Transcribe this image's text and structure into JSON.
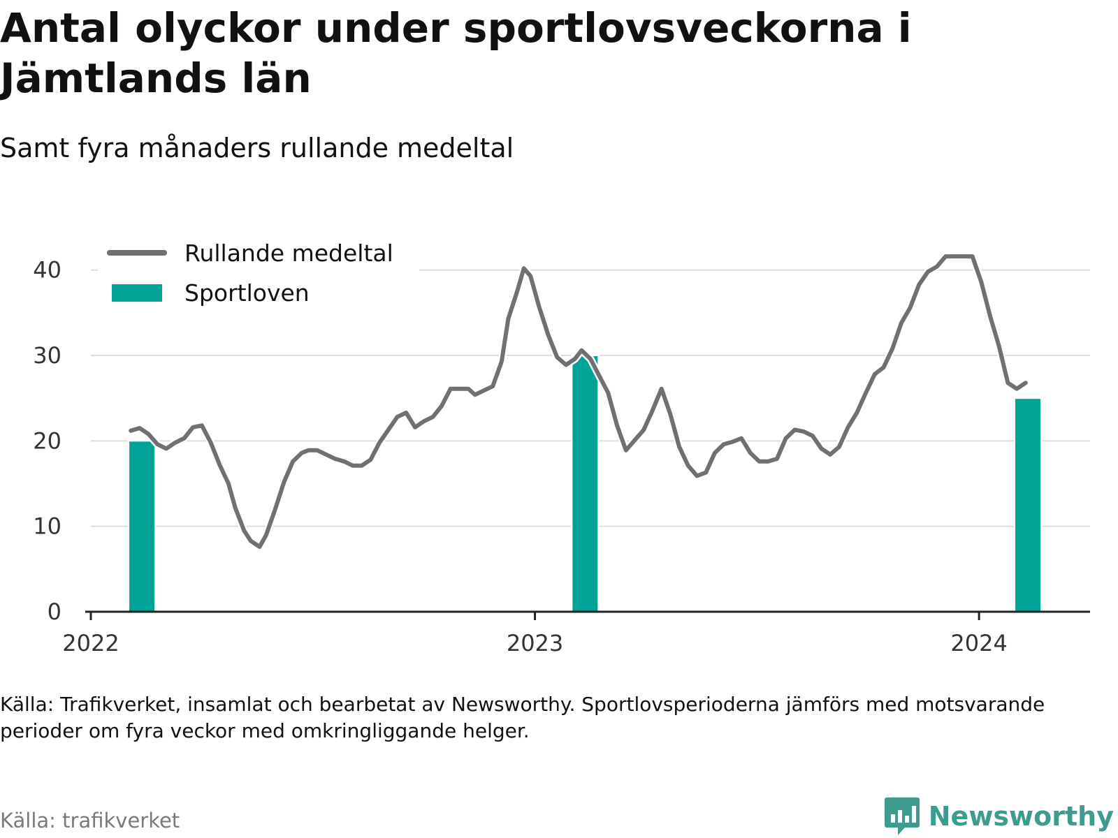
{
  "title": "Antal olyckor under sportlovsveckorna i Jämtlands län",
  "subtitle": "Samt fyra månaders rullande medeltal",
  "note": "Källa: Trafikverket, insamlat och bearbetat av Newsworthy. Sportlovsperioderna jämförs med motsvarande perioder om fyra veckor med omkringliggande helger.",
  "source": "Källa: trafikverket",
  "brand": {
    "name": "Newsworthy",
    "icon": "bar-chart-speech-icon",
    "color": "#3c9c8f"
  },
  "chart_data": {
    "type": "line+bar",
    "xlim": [
      2022.0,
      2024.25
    ],
    "ylim": [
      0,
      43
    ],
    "yticks": [
      0,
      10,
      20,
      30,
      40
    ],
    "xticks": [
      {
        "value": 2022,
        "label": "2022"
      },
      {
        "value": 2023,
        "label": "2023"
      },
      {
        "value": 2024,
        "label": "2024"
      }
    ],
    "grid": true,
    "legend": {
      "placement": "top-left",
      "entries": [
        {
          "label": "Rullande medeltal",
          "type": "line",
          "color": "#6f6f74"
        },
        {
          "label": "Sportloven",
          "type": "bar",
          "color": "#00a398"
        }
      ]
    },
    "series": [
      {
        "type": "line",
        "color": "#6f6f74",
        "points": [
          [
            2022.09,
            21.2
          ],
          [
            2022.11,
            21.5
          ],
          [
            2022.13,
            20.8
          ],
          [
            2022.15,
            19.6
          ],
          [
            2022.17,
            19.1
          ],
          [
            2022.19,
            19.8
          ],
          [
            2022.21,
            20.3
          ],
          [
            2022.23,
            21.6
          ],
          [
            2022.25,
            21.8
          ],
          [
            2022.27,
            19.8
          ],
          [
            2022.29,
            17.2
          ],
          [
            2022.31,
            15.0
          ],
          [
            2022.325,
            12.2
          ],
          [
            2022.345,
            9.5
          ],
          [
            2022.36,
            8.3
          ],
          [
            2022.38,
            7.6
          ],
          [
            2022.395,
            9.0
          ],
          [
            2022.415,
            12.0
          ],
          [
            2022.435,
            15.2
          ],
          [
            2022.455,
            17.6
          ],
          [
            2022.475,
            18.6
          ],
          [
            2022.49,
            18.9
          ],
          [
            2022.51,
            18.9
          ],
          [
            2022.53,
            18.4
          ],
          [
            2022.55,
            17.9
          ],
          [
            2022.57,
            17.6
          ],
          [
            2022.59,
            17.1
          ],
          [
            2022.61,
            17.1
          ],
          [
            2022.63,
            17.8
          ],
          [
            2022.65,
            19.8
          ],
          [
            2022.67,
            21.3
          ],
          [
            2022.69,
            22.8
          ],
          [
            2022.71,
            23.3
          ],
          [
            2022.73,
            21.6
          ],
          [
            2022.75,
            22.3
          ],
          [
            2022.77,
            22.8
          ],
          [
            2022.79,
            24.1
          ],
          [
            2022.81,
            26.1
          ],
          [
            2022.83,
            26.1
          ],
          [
            2022.85,
            26.1
          ],
          [
            2022.865,
            25.4
          ],
          [
            2022.885,
            25.9
          ],
          [
            2022.905,
            26.4
          ],
          [
            2022.925,
            29.3
          ],
          [
            2022.94,
            34.3
          ],
          [
            2022.96,
            37.5
          ],
          [
            2022.975,
            40.2
          ],
          [
            2022.99,
            39.3
          ],
          [
            2023.01,
            35.6
          ],
          [
            2023.03,
            32.4
          ],
          [
            2023.05,
            29.8
          ],
          [
            2023.07,
            28.9
          ],
          [
            2023.09,
            29.6
          ],
          [
            2023.105,
            30.6
          ],
          [
            2023.125,
            29.6
          ],
          [
            2023.145,
            27.6
          ],
          [
            2023.165,
            25.6
          ],
          [
            2023.185,
            21.8
          ],
          [
            2023.205,
            18.9
          ],
          [
            2023.225,
            20.1
          ],
          [
            2023.245,
            21.3
          ],
          [
            2023.265,
            23.6
          ],
          [
            2023.285,
            26.1
          ],
          [
            2023.305,
            23.1
          ],
          [
            2023.325,
            19.3
          ],
          [
            2023.345,
            17.1
          ],
          [
            2023.365,
            15.9
          ],
          [
            2023.385,
            16.3
          ],
          [
            2023.405,
            18.6
          ],
          [
            2023.425,
            19.6
          ],
          [
            2023.445,
            19.9
          ],
          [
            2023.465,
            20.3
          ],
          [
            2023.485,
            18.6
          ],
          [
            2023.505,
            17.6
          ],
          [
            2023.525,
            17.6
          ],
          [
            2023.545,
            17.9
          ],
          [
            2023.565,
            20.3
          ],
          [
            2023.585,
            21.3
          ],
          [
            2023.605,
            21.1
          ],
          [
            2023.625,
            20.6
          ],
          [
            2023.645,
            19.1
          ],
          [
            2023.665,
            18.4
          ],
          [
            2023.685,
            19.3
          ],
          [
            2023.705,
            21.6
          ],
          [
            2023.725,
            23.3
          ],
          [
            2023.745,
            25.6
          ],
          [
            2023.765,
            27.8
          ],
          [
            2023.785,
            28.6
          ],
          [
            2023.805,
            30.8
          ],
          [
            2023.825,
            33.8
          ],
          [
            2023.845,
            35.6
          ],
          [
            2023.865,
            38.3
          ],
          [
            2023.885,
            39.8
          ],
          [
            2023.905,
            40.4
          ],
          [
            2023.925,
            41.6
          ],
          [
            2023.945,
            41.6
          ],
          [
            2023.965,
            41.6
          ],
          [
            2023.985,
            41.6
          ],
          [
            2024.005,
            38.6
          ],
          [
            2024.025,
            34.6
          ],
          [
            2024.045,
            31.1
          ],
          [
            2024.065,
            26.8
          ],
          [
            2024.085,
            26.1
          ],
          [
            2024.105,
            26.8
          ]
        ]
      },
      {
        "type": "bar",
        "name": "Sportloven",
        "color": "#00a398",
        "bars": [
          {
            "x": 2022.115,
            "value": 20
          },
          {
            "x": 2023.113,
            "value": 30
          },
          {
            "x": 2024.11,
            "value": 25
          }
        ]
      }
    ]
  }
}
